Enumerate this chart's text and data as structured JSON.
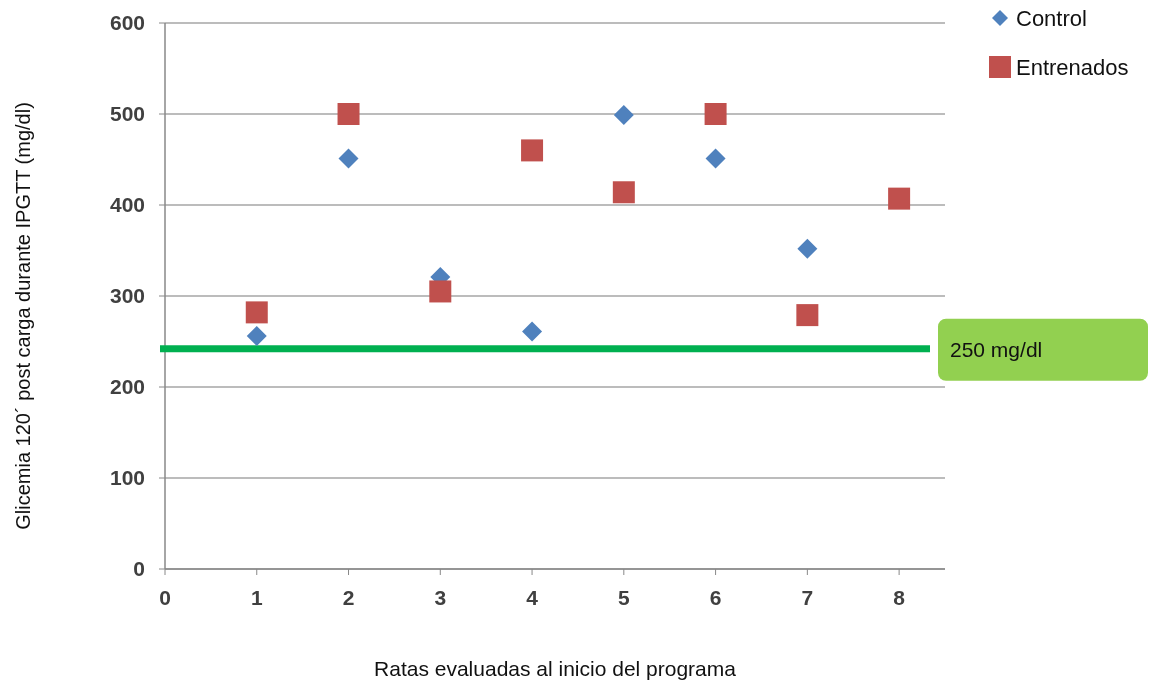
{
  "chart_data": {
    "type": "scatter",
    "xlabel": "Ratas evaluadas al inicio del programa",
    "ylabel": "Glicemia 120´ post carga durante IPGTT (mg/dl)",
    "x": [
      1,
      2,
      3,
      4,
      5,
      6,
      7,
      8
    ],
    "series": [
      {
        "name": "Control",
        "color": "#4f81bd",
        "marker": "diamond",
        "values": [
          256,
          451,
          321,
          261,
          499,
          451,
          352,
          null
        ]
      },
      {
        "name": "Entrenados",
        "color": "#c0504d",
        "marker": "square",
        "values": [
          282,
          500,
          305,
          460,
          414,
          500,
          279,
          407
        ]
      }
    ],
    "xlim": [
      0,
      8.5
    ],
    "xticks": [
      0,
      1,
      2,
      3,
      4,
      5,
      6,
      7,
      8
    ],
    "ylim": [
      0,
      600
    ],
    "yticks": [
      0,
      100,
      200,
      300,
      400,
      500,
      600
    ],
    "grid": "y",
    "legend": "top right",
    "ref_lines": [
      {
        "axis": "y",
        "value": 242,
        "label": "250 mg/dl",
        "color": "#00b050"
      }
    ]
  }
}
